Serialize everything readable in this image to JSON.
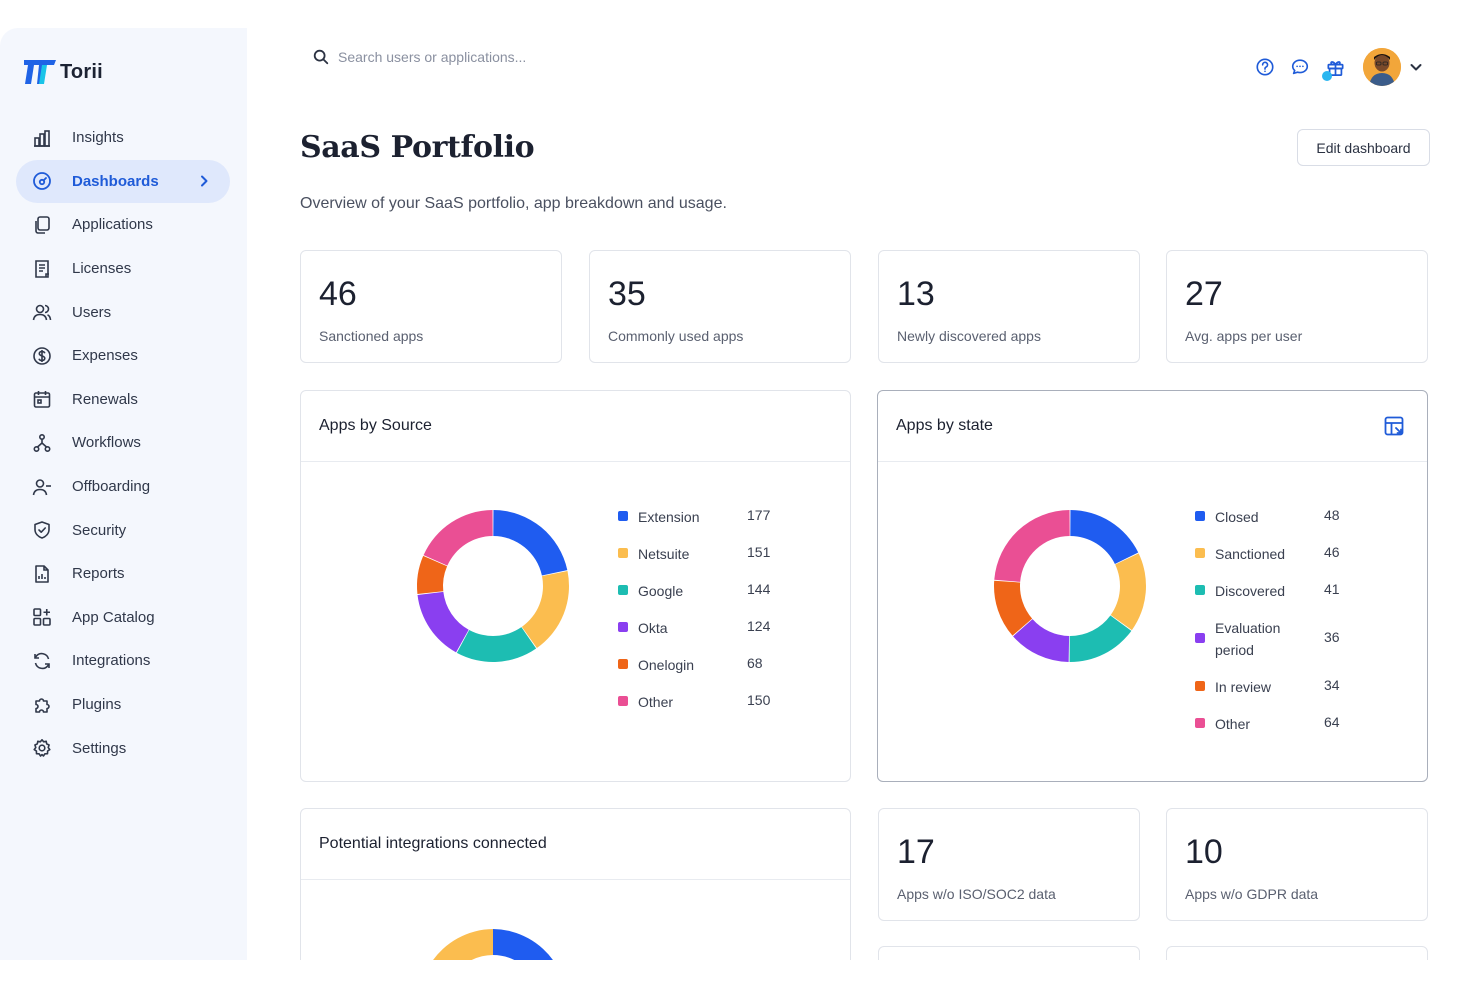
{
  "brand": {
    "name": "Torii"
  },
  "sidebar": {
    "items": [
      {
        "label": "Insights",
        "icon": "bar-chart-icon",
        "active": false
      },
      {
        "label": "Dashboards",
        "icon": "dashboard-gauge-icon",
        "active": true
      },
      {
        "label": "Applications",
        "icon": "copy-apps-icon",
        "active": false
      },
      {
        "label": "Licenses",
        "icon": "license-doc-icon",
        "active": false
      },
      {
        "label": "Users",
        "icon": "users-icon",
        "active": false
      },
      {
        "label": "Expenses",
        "icon": "dollar-circle-icon",
        "active": false
      },
      {
        "label": "Renewals",
        "icon": "calendar-icon",
        "active": false
      },
      {
        "label": "Workflows",
        "icon": "workflow-icon",
        "active": false
      },
      {
        "label": "Offboarding",
        "icon": "user-minus-icon",
        "active": false
      },
      {
        "label": "Security",
        "icon": "shield-icon",
        "active": false
      },
      {
        "label": "Reports",
        "icon": "report-icon",
        "active": false
      },
      {
        "label": "App Catalog",
        "icon": "grid-plus-icon",
        "active": false
      },
      {
        "label": "Integrations",
        "icon": "sync-icon",
        "active": false
      },
      {
        "label": "Plugins",
        "icon": "puzzle-icon",
        "active": false
      },
      {
        "label": "Settings",
        "icon": "gear-icon",
        "active": false
      }
    ]
  },
  "search": {
    "placeholder": "Search users or applications..."
  },
  "topbar": {
    "icons": [
      "help-icon",
      "chat-icon",
      "gift-icon"
    ]
  },
  "header": {
    "title": "SaaS Portfolio",
    "subtitle": "Overview of your SaaS portfolio, app breakdown and usage.",
    "edit_label": "Edit dashboard"
  },
  "stats": [
    {
      "value": "46",
      "label": "Sanctioned apps"
    },
    {
      "value": "35",
      "label": "Commonly used apps"
    },
    {
      "value": "13",
      "label": "Newly discovered apps"
    },
    {
      "value": "27",
      "label": "Avg. apps per user"
    }
  ],
  "stats_bottom": [
    {
      "value": "17",
      "label": "Apps w/o ISO/SOC2 data"
    },
    {
      "value": "10",
      "label": "Apps w/o GDPR data"
    }
  ],
  "colors": {
    "blue": "#1f5cf0",
    "yellow": "#fbbd4f",
    "teal": "#1dbdb2",
    "purple": "#8a3ff0",
    "orange": "#ef6518",
    "pink": "#ea4f94",
    "accent": "#1f5bd8"
  },
  "chart_data": [
    {
      "type": "pie",
      "donut": true,
      "title": "Apps by Source",
      "legend_placement": "right",
      "series": [
        {
          "name": "Extension",
          "value": 177,
          "color": "#1f5cf0"
        },
        {
          "name": "Netsuite",
          "value": 151,
          "color": "#fbbd4f"
        },
        {
          "name": "Google",
          "value": 144,
          "color": "#1dbdb2"
        },
        {
          "name": "Okta",
          "value": 124,
          "color": "#8a3ff0"
        },
        {
          "name": "Onelogin",
          "value": 68,
          "color": "#ef6518"
        },
        {
          "name": "Other",
          "value": 150,
          "color": "#ea4f94"
        }
      ]
    },
    {
      "type": "pie",
      "donut": true,
      "title": "Apps by state",
      "legend_placement": "right",
      "series": [
        {
          "name": "Closed",
          "value": 48,
          "color": "#1f5cf0"
        },
        {
          "name": "Sanctioned",
          "value": 46,
          "color": "#fbbd4f"
        },
        {
          "name": "Discovered",
          "value": 41,
          "color": "#1dbdb2"
        },
        {
          "name": "Evaluation period",
          "value": 36,
          "color": "#8a3ff0"
        },
        {
          "name": "In review",
          "value": 34,
          "color": "#ef6518"
        },
        {
          "name": "Other",
          "value": 64,
          "color": "#ea4f94"
        }
      ]
    },
    {
      "type": "pie",
      "donut": true,
      "title": "Potential integrations connected",
      "series": []
    }
  ]
}
